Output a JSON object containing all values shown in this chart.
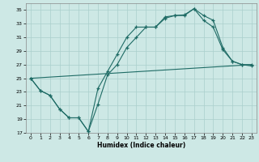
{
  "xlabel": "Humidex (Indice chaleur)",
  "bg_color": "#cde8e5",
  "grid_color": "#aacfcc",
  "line_color": "#1e6b65",
  "xlim": [
    -0.5,
    23.5
  ],
  "ylim": [
    17,
    36
  ],
  "yticks": [
    17,
    19,
    21,
    23,
    25,
    27,
    29,
    31,
    33,
    35
  ],
  "xticks": [
    0,
    1,
    2,
    3,
    4,
    5,
    6,
    7,
    8,
    9,
    10,
    11,
    12,
    13,
    14,
    15,
    16,
    17,
    18,
    19,
    20,
    21,
    22,
    23
  ],
  "curve1_x": [
    0,
    1,
    2,
    3,
    4,
    5,
    6,
    7,
    8,
    9,
    10,
    11,
    12,
    13,
    14,
    15,
    16,
    17,
    18,
    19,
    20,
    21,
    22,
    23
  ],
  "curve1_y": [
    25,
    23.2,
    22.5,
    20.5,
    19.2,
    19.2,
    17.2,
    23.5,
    26.0,
    28.5,
    31.0,
    32.5,
    32.5,
    32.5,
    34.0,
    34.2,
    34.2,
    35.2,
    34.2,
    33.5,
    29.5,
    27.5,
    27.0,
    27.0
  ],
  "curve2_x": [
    0,
    1,
    2,
    3,
    4,
    5,
    6,
    7,
    8,
    9,
    10,
    11,
    12,
    13,
    14,
    15,
    16,
    17,
    18,
    19,
    20,
    21,
    22,
    23
  ],
  "curve2_y": [
    25,
    23.2,
    22.5,
    20.5,
    19.2,
    19.2,
    17.2,
    21.2,
    25.5,
    27.0,
    29.5,
    31.0,
    32.5,
    32.5,
    33.8,
    34.2,
    34.3,
    35.2,
    33.5,
    32.5,
    29.2,
    27.5,
    27.0,
    26.8
  ],
  "line3_x": [
    0,
    23
  ],
  "line3_y": [
    25.0,
    27.0
  ]
}
